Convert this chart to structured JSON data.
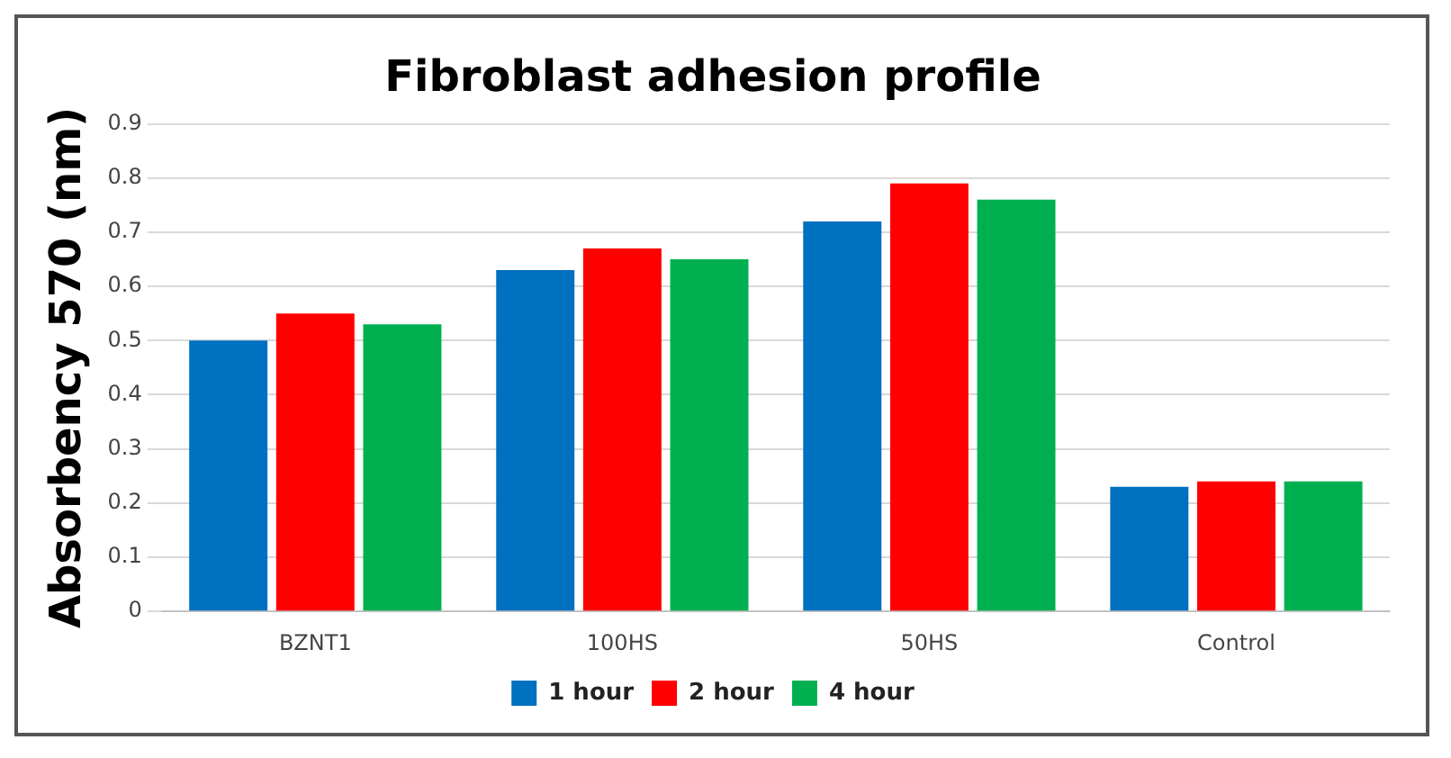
{
  "chart_data": {
    "type": "bar",
    "title": "Fibroblast adhesion profile",
    "ylabel": "Absorbency 570 (nm)",
    "categories": [
      "BZNT1",
      "100HS",
      "50HS",
      "Control"
    ],
    "series": [
      {
        "name": "1 hour",
        "color": "#0070c0",
        "values": [
          0.5,
          0.63,
          0.72,
          0.23
        ]
      },
      {
        "name": "2 hour",
        "color": "#ff0000",
        "values": [
          0.55,
          0.67,
          0.79,
          0.24
        ]
      },
      {
        "name": "4 hour",
        "color": "#00b050",
        "values": [
          0.53,
          0.65,
          0.76,
          0.24
        ]
      }
    ],
    "ylim": [
      0,
      0.9
    ],
    "yticks": [
      0,
      0.1,
      0.2,
      0.3,
      0.4,
      0.5,
      0.6,
      0.7,
      0.8,
      0.9
    ],
    "grid": "y",
    "legend": "bottom"
  }
}
